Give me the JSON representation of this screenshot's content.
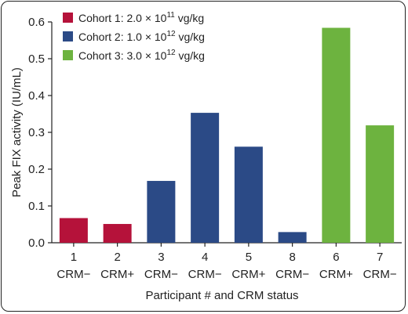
{
  "chart_data": {
    "type": "bar",
    "categories": [
      "1",
      "2",
      "3",
      "4",
      "5",
      "8",
      "6",
      "7"
    ],
    "crm_status": [
      "CRM−",
      "CRM+",
      "CRM−",
      "CRM−",
      "CRM+",
      "CRM−",
      "CRM+",
      "CRM−"
    ],
    "values": [
      0.067,
      0.051,
      0.168,
      0.353,
      0.261,
      0.029,
      0.584,
      0.319
    ],
    "cohort_index": [
      0,
      0,
      1,
      1,
      1,
      1,
      2,
      2
    ],
    "cohorts": [
      {
        "prefix": "Cohort 1: 2.0 × 10",
        "exp": "11",
        "suffix": " vg/kg",
        "color": "#b5123a"
      },
      {
        "prefix": "Cohort 2: 1.0 × 10",
        "exp": "12",
        "suffix": " vg/kg",
        "color": "#2b4a86"
      },
      {
        "prefix": "Cohort 3: 3.0 × 10",
        "exp": "12",
        "suffix": " vg/kg",
        "color": "#6db33f"
      }
    ],
    "ylabel": "Peak FIX activity (IU/mL)",
    "xlabel": "Participant # and CRM status",
    "ylim": [
      0,
      0.6
    ],
    "yticks": [
      "0.0",
      "0.1",
      "0.2",
      "0.3",
      "0.4",
      "0.5",
      "0.6"
    ],
    "legend_position": "top-left",
    "grid": false
  }
}
